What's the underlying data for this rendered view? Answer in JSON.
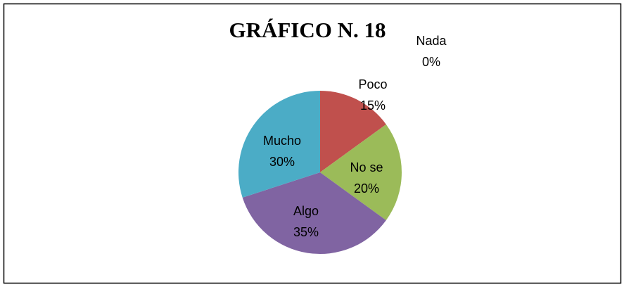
{
  "chart_data": {
    "type": "pie",
    "title": "GRÁFICO N. 18",
    "categories": [
      "Nada",
      "Poco",
      "No se",
      "Algo",
      "Mucho"
    ],
    "values": [
      0,
      15,
      20,
      35,
      30
    ],
    "value_labels": [
      "0%",
      "15%",
      "20%",
      "35%",
      "30%"
    ],
    "colors": [
      "#4F81BD",
      "#C0504D",
      "#9BBB59",
      "#8064A2",
      "#4BACC6"
    ]
  }
}
